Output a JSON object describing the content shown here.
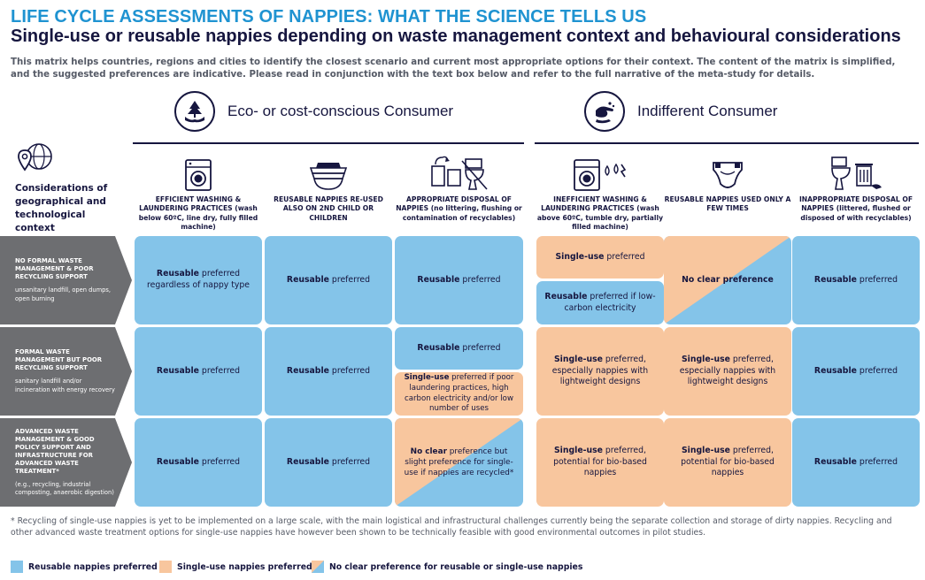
{
  "title": "LIFE CYCLE ASSESSMENTS OF NAPPIES: WHAT THE SCIENCE TELLS US",
  "subtitle": "Single-use or reusable nappies depending on waste management context and behavioural considerations",
  "intro": "This matrix helps countries, regions and cities to identify the closest scenario and current most appropriate options for their context. The content of the matrix is simplified, and the suggested preferences are indicative.  Please read in conjunction with the text box below and refer to the full narrative of the meta-study for details.",
  "groups": {
    "eco": {
      "label": "Eco- or cost-conscious Consumer",
      "icon": "hands-tree-icon"
    },
    "indifferent": {
      "label": "Indifferent Consumer",
      "icon": "hands-washing-icon"
    }
  },
  "considerations_label": "Considerations of geographical and technological context",
  "columns": [
    {
      "icon": "washing-machine-icon",
      "header": "EFFICIENT WASHING & LAUNDERING PRACTICES (wash below 60ºC, line dry, fully filled machine)"
    },
    {
      "icon": "nappy-stack-icon",
      "header": "REUSABLE NAPPIES RE-USED ALSO ON 2ND CHILD OR CHILDREN"
    },
    {
      "icon": "bins-toilet-icon",
      "header": "APPROPRIATE DISPOSAL OF NAPPIES (no littering, flushing or contamination of recyclables)"
    },
    {
      "icon": "washing-machine-flame-icon",
      "header": "INEFFICIENT WASHING & LAUNDERING PRACTICES (wash above 60ºC, tumble dry, partially filled machine)"
    },
    {
      "icon": "nappy-icon",
      "header": "REUSABLE NAPPIES USED ONLY A FEW TIMES"
    },
    {
      "icon": "toilet-bin-icon",
      "header": "INAPPROPRIATE DISPOSAL OF NAPPIES (littered, flushed or disposed of with recyclables)"
    }
  ],
  "rows": [
    {
      "title": "NO FORMAL WASTE MANAGEMENT & POOR RECYCLING SUPPORT",
      "sub": "unsanitary landfill, open dumps, open burning"
    },
    {
      "title": "FORMAL WASTE MANAGEMENT BUT POOR RECYCLING SUPPORT",
      "sub": "sanitary landfill and/or incineration with energy recovery"
    },
    {
      "title": "ADVANCED WASTE MANAGEMENT & GOOD POLICY SUPPORT AND INFRASTRUCTURE FOR ADVANCED WASTE TREATMENT*",
      "sub": "(e.g., recycling, industrial composting, anaerobic digestion)"
    }
  ],
  "cells": {
    "r1c1": {
      "bold": "Reusable",
      "rest": " preferred regardless of nappy type"
    },
    "r1c2": {
      "bold": "Reusable",
      "rest": " preferred"
    },
    "r1c3": {
      "bold": "Reusable",
      "rest": " preferred"
    },
    "r1c4a": {
      "bold": "Single-use",
      "rest": " preferred"
    },
    "r1c4b": {
      "bold": "Reusable",
      "rest": " preferred if low-carbon electricity"
    },
    "r1c5": {
      "bold": "No clear preference",
      "rest": ""
    },
    "r1c6": {
      "bold": "Reusable",
      "rest": " preferred"
    },
    "r2c1": {
      "bold": "Reusable",
      "rest": " preferred"
    },
    "r2c2": {
      "bold": "Reusable",
      "rest": " preferred"
    },
    "r2c3a": {
      "bold": "Reusable",
      "rest": " preferred"
    },
    "r2c3b": {
      "bold": "Single-use",
      "rest": " preferred if poor laundering practices, high carbon electricity and/or low number of uses"
    },
    "r2c4": {
      "bold": "Single-use",
      "rest": " preferred, especially nappies with lightweight designs"
    },
    "r2c5": {
      "bold": "Single-use",
      "rest": " preferred, especially nappies with lightweight designs"
    },
    "r2c6": {
      "bold": "Reusable",
      "rest": " preferred"
    },
    "r3c1": {
      "bold": "Reusable",
      "rest": " preferred"
    },
    "r3c2": {
      "bold": "Reusable",
      "rest": " preferred"
    },
    "r3c3": {
      "bold": "No clear",
      "rest": " preference but slight preference for single-use if nappies are recycled*"
    },
    "r3c4": {
      "bold": "Single-use",
      "rest": " preferred, potential for bio-based nappies"
    },
    "r3c5": {
      "bold": "Single-use",
      "rest": " preferred, potential for bio-based nappies"
    },
    "r3c6": {
      "bold": "Reusable",
      "rest": " preferred"
    }
  },
  "footnote": "* Recycling of single-use nappies is yet to be implemented on a large scale, with the main logistical and infrastructural challenges currently being the separate collection and storage of dirty nappies. Recycling and other advanced waste treatment options for single-use nappies have however been shown to be technically feasible with good environmental outcomes in pilot studies.",
  "legend": [
    {
      "label": "Reusable nappies preferred",
      "color": "#84c4e9"
    },
    {
      "label": "Single-use nappies preferred",
      "color": "#f8c69e"
    },
    {
      "label": "No clear preference for reusable or single-use nappies",
      "color": "split"
    }
  ],
  "colors": {
    "reusable": "#84c4e9",
    "single_use": "#f8c69e",
    "title_blue": "#1f93d1",
    "navy": "#16163f",
    "row_grey": "#6d6e71"
  }
}
